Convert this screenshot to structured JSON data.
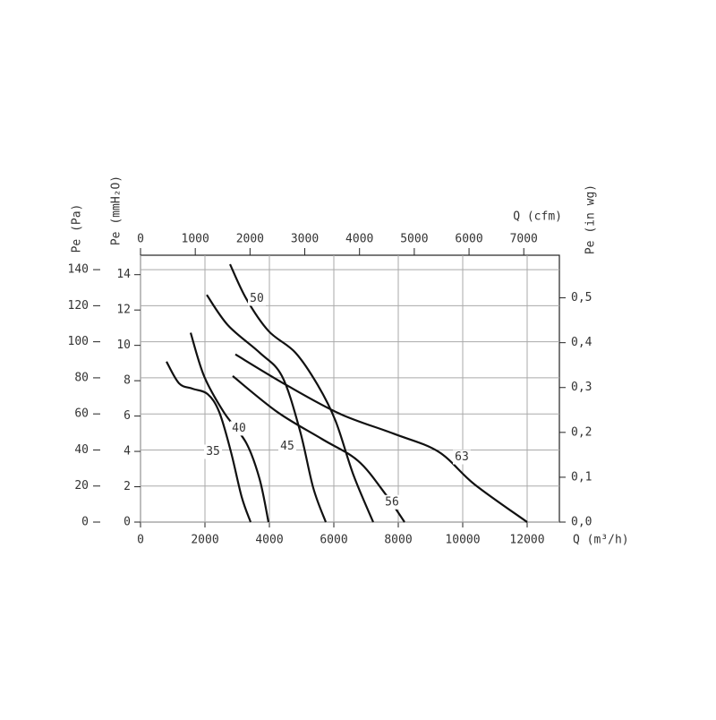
{
  "chart_data": {
    "type": "line",
    "x_label": "Q (m³/h)",
    "x2_label": "Q (cfm)",
    "y_label": "Pe (Pa)",
    "y2_label": "Pe (mmH₂O)",
    "y3_label": "Pe (in wg)",
    "xlim": [
      0,
      13000
    ],
    "xticks": [
      0,
      2000,
      4000,
      6000,
      8000,
      10000,
      12000
    ],
    "x2lim": [
      0,
      7650
    ],
    "x2ticks": [
      0,
      1000,
      2000,
      3000,
      4000,
      5000,
      6000,
      7000
    ],
    "ylim": [
      0,
      148
    ],
    "yticks": [
      0,
      20,
      40,
      60,
      80,
      100,
      120,
      140
    ],
    "y2lim": [
      0,
      15.1
    ],
    "y2ticks": [
      0,
      2,
      4,
      6,
      8,
      10,
      12,
      14
    ],
    "y3lim": [
      0,
      0.595
    ],
    "y3ticks": [
      {
        "value": 0,
        "label": "0,0"
      },
      {
        "value": 0.1,
        "label": "0,1"
      },
      {
        "value": 0.2,
        "label": "0,2"
      },
      {
        "value": 0.3,
        "label": "0,3"
      },
      {
        "value": 0.4,
        "label": "0,4"
      },
      {
        "value": 0.5,
        "label": "0,5"
      }
    ],
    "grid": true,
    "series": [
      {
        "name": "35",
        "color": "#111111",
        "x": [
          806,
          1194,
          1611,
          2083,
          2444,
          2806,
          3139,
          3417
        ],
        "values": [
          89,
          77,
          74,
          71,
          61,
          39,
          14,
          0
        ]
      },
      {
        "name": "40",
        "color": "#111111",
        "x": [
          1556,
          1972,
          2583,
          3278,
          3694,
          3972
        ],
        "values": [
          105,
          81,
          61,
          44,
          24,
          0
        ]
      },
      {
        "name": "45",
        "color": "#111111",
        "x": [
          2056,
          2722,
          3694,
          4389,
          4944,
          5361,
          5750
        ],
        "values": [
          126,
          109,
          94,
          81,
          51,
          19,
          0
        ]
      },
      {
        "name": "50",
        "color": "#111111",
        "x": [
          2778,
          3278,
          3972,
          4806,
          5500,
          6056,
          6611,
          7222
        ],
        "values": [
          143,
          124,
          106,
          94,
          76,
          56,
          26,
          0
        ]
      },
      {
        "name": "56",
        "color": "#111111",
        "x": [
          2861,
          4250,
          5639,
          6750,
          7583,
          8194
        ],
        "values": [
          81,
          61,
          46,
          34,
          16,
          0
        ]
      },
      {
        "name": "63",
        "color": "#111111",
        "x": [
          2944,
          4528,
          6194,
          7861,
          9250,
          10361,
          12000
        ],
        "values": [
          93,
          76,
          60,
          49,
          39,
          21,
          0
        ]
      }
    ]
  }
}
